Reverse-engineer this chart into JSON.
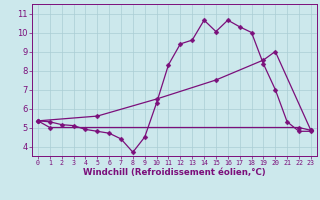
{
  "line1_x": [
    0,
    1,
    2,
    3,
    4,
    5,
    6,
    7,
    8,
    9,
    10,
    11,
    12,
    13,
    14,
    15,
    16,
    17,
    18,
    19,
    20,
    21,
    22,
    23
  ],
  "line1_y": [
    5.35,
    5.3,
    5.15,
    5.1,
    4.9,
    4.8,
    4.7,
    4.4,
    3.7,
    4.5,
    6.3,
    8.3,
    9.4,
    9.6,
    10.65,
    10.05,
    10.65,
    10.3,
    10.0,
    8.35,
    7.0,
    5.3,
    4.8,
    4.8
  ],
  "line2_x": [
    0,
    5,
    10,
    15,
    19,
    20,
    23
  ],
  "line2_y": [
    5.35,
    5.6,
    6.5,
    7.5,
    8.55,
    9.0,
    4.85
  ],
  "line3_x": [
    0,
    1,
    22,
    23
  ],
  "line3_y": [
    5.35,
    5.0,
    5.0,
    4.85
  ],
  "color": "#7b0f7b",
  "bg_color": "#cce8ec",
  "grid_color": "#aacdd4",
  "xlabel": "Windchill (Refroidissement éolien,°C)",
  "xlim": [
    -0.5,
    23.5
  ],
  "ylim": [
    3.5,
    11.5
  ],
  "xticks": [
    0,
    1,
    2,
    3,
    4,
    5,
    6,
    7,
    8,
    9,
    10,
    11,
    12,
    13,
    14,
    15,
    16,
    17,
    18,
    19,
    20,
    21,
    22,
    23
  ],
  "yticks": [
    4,
    5,
    6,
    7,
    8,
    9,
    10,
    11
  ],
  "marker_size": 2.5,
  "line_width": 0.9
}
